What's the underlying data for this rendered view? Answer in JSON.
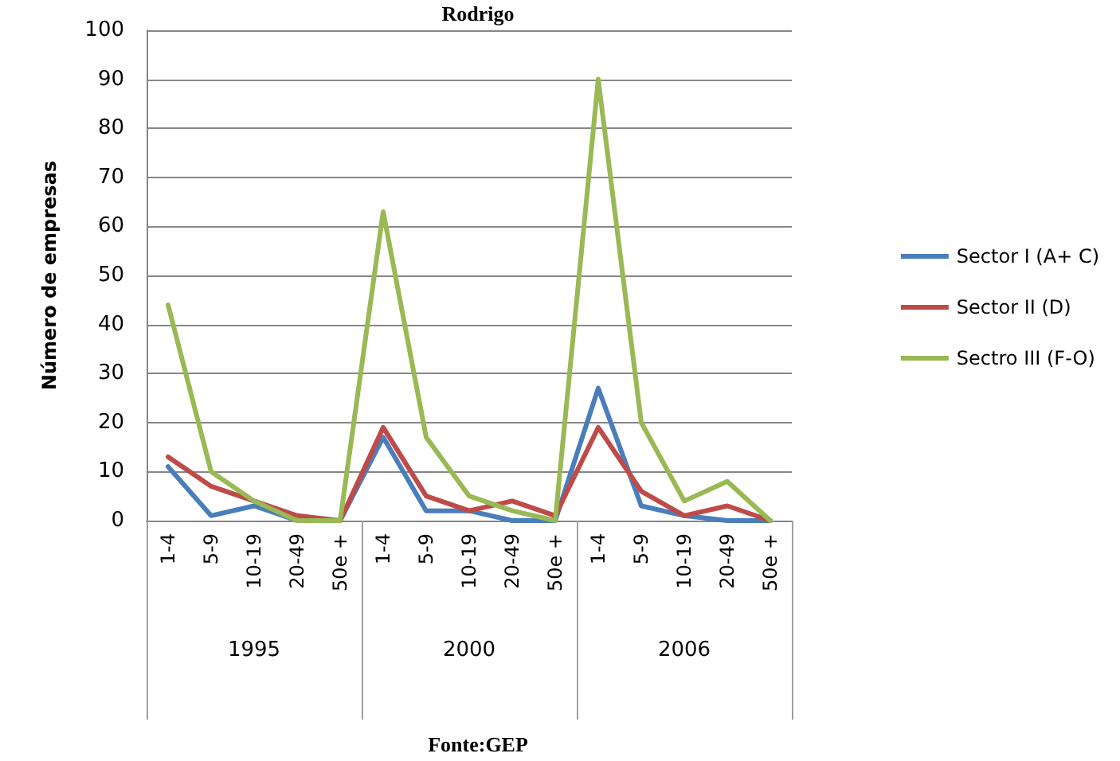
{
  "chart_data": {
    "type": "line",
    "title": "Rodrigo",
    "ylabel": "Número de empresas",
    "categories": [
      "1-4",
      "5-9",
      "10-19",
      "20-49",
      "50e +",
      "1-4",
      "5-9",
      "10-19",
      "20-49",
      "50e +",
      "1-4",
      "5-9",
      "10-19",
      "20-49",
      "50e +"
    ],
    "series": [
      {
        "name": "Sector I (A+ C)",
        "color": "#4a7ebb",
        "values": [
          11,
          1,
          3,
          0,
          0,
          17,
          2,
          2,
          0,
          0,
          27,
          3,
          1,
          0,
          0
        ]
      },
      {
        "name": "Sector II (D)",
        "color": "#be4b48",
        "values": [
          13,
          7,
          4,
          1,
          0,
          19,
          5,
          2,
          4,
          1,
          19,
          6,
          1,
          3,
          0
        ]
      },
      {
        "name": "Sectro III (F-O)",
        "color": "#98b954",
        "values": [
          44,
          10,
          4,
          0,
          0,
          63,
          17,
          5,
          2,
          0,
          90,
          20,
          4,
          8,
          0
        ]
      }
    ],
    "annotations": [
      "1995",
      "2000",
      "2006",
      "Fonte:GEP"
    ],
    "ylim": [
      0,
      100
    ],
    "yticks": [
      0,
      10,
      20,
      30,
      40,
      50,
      60,
      70,
      80,
      90,
      100
    ],
    "grid": "y",
    "legend": "right",
    "marker": "none",
    "line_style": "solid"
  }
}
